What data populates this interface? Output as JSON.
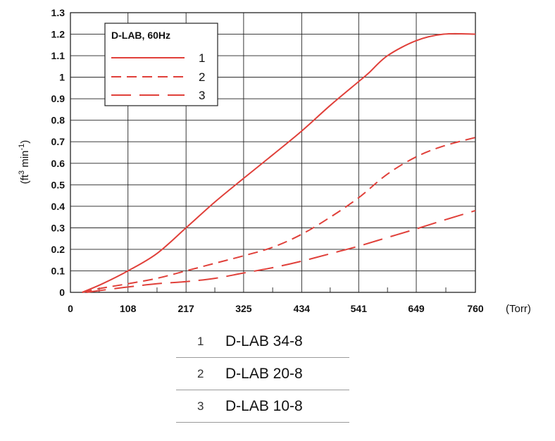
{
  "chart_data": {
    "type": "line",
    "title": "",
    "xlabel": "",
    "x_unit": "(Torr)",
    "ylabel_base": "(ft",
    "ylabel_sup1": "3",
    "ylabel_mid": " min",
    "ylabel_sup2": "-1",
    "ylabel_end": ")",
    "x_ticks": [
      "0",
      "108",
      "217",
      "325",
      "434",
      "541",
      "649",
      "760"
    ],
    "y_ticks": [
      "0",
      "0.1",
      "0.2",
      "0.3",
      "0.4",
      "0.5",
      "0.6",
      "0.7",
      "0.8",
      "0.9",
      "1",
      "1.1",
      "1.2",
      "1.3"
    ],
    "xlim": [
      0,
      760
    ],
    "ylim": [
      0,
      1.3
    ],
    "grid": true,
    "legend": {
      "title": "D-LAB, 60Hz",
      "placement": "top-left",
      "entries": [
        {
          "label": "1",
          "dash": "solid"
        },
        {
          "label": "2",
          "dash": "short-dash"
        },
        {
          "label": "3",
          "dash": "long-dash"
        }
      ]
    },
    "series": [
      {
        "name": "1",
        "color": "#e0403a",
        "x": [
          22,
          60,
          108,
          162,
          217,
          271,
          325,
          380,
          434,
          488,
          541,
          560,
          595,
          649,
          700,
          760
        ],
        "y": [
          0,
          0.04,
          0.1,
          0.18,
          0.3,
          0.42,
          0.53,
          0.64,
          0.75,
          0.87,
          0.98,
          1.02,
          1.1,
          1.17,
          1.2,
          1.2
        ]
      },
      {
        "name": "2",
        "color": "#e0403a",
        "x": [
          22,
          60,
          108,
          162,
          217,
          271,
          325,
          380,
          434,
          488,
          541,
          595,
          649,
          700,
          760
        ],
        "y": [
          0,
          0.02,
          0.04,
          0.065,
          0.1,
          0.135,
          0.17,
          0.21,
          0.27,
          0.35,
          0.44,
          0.55,
          0.63,
          0.68,
          0.72
        ]
      },
      {
        "name": "3",
        "color": "#e0403a",
        "x": [
          30,
          60,
          108,
          162,
          217,
          271,
          325,
          380,
          434,
          488,
          541,
          595,
          649,
          700,
          760
        ],
        "y": [
          0,
          0.01,
          0.025,
          0.04,
          0.05,
          0.065,
          0.09,
          0.115,
          0.145,
          0.18,
          0.215,
          0.255,
          0.295,
          0.335,
          0.38
        ]
      }
    ]
  },
  "key": [
    {
      "num": "1",
      "name": "D-LAB 34-8"
    },
    {
      "num": "2",
      "name": "D-LAB 20-8"
    },
    {
      "num": "3",
      "name": "D-LAB 10-8"
    }
  ]
}
